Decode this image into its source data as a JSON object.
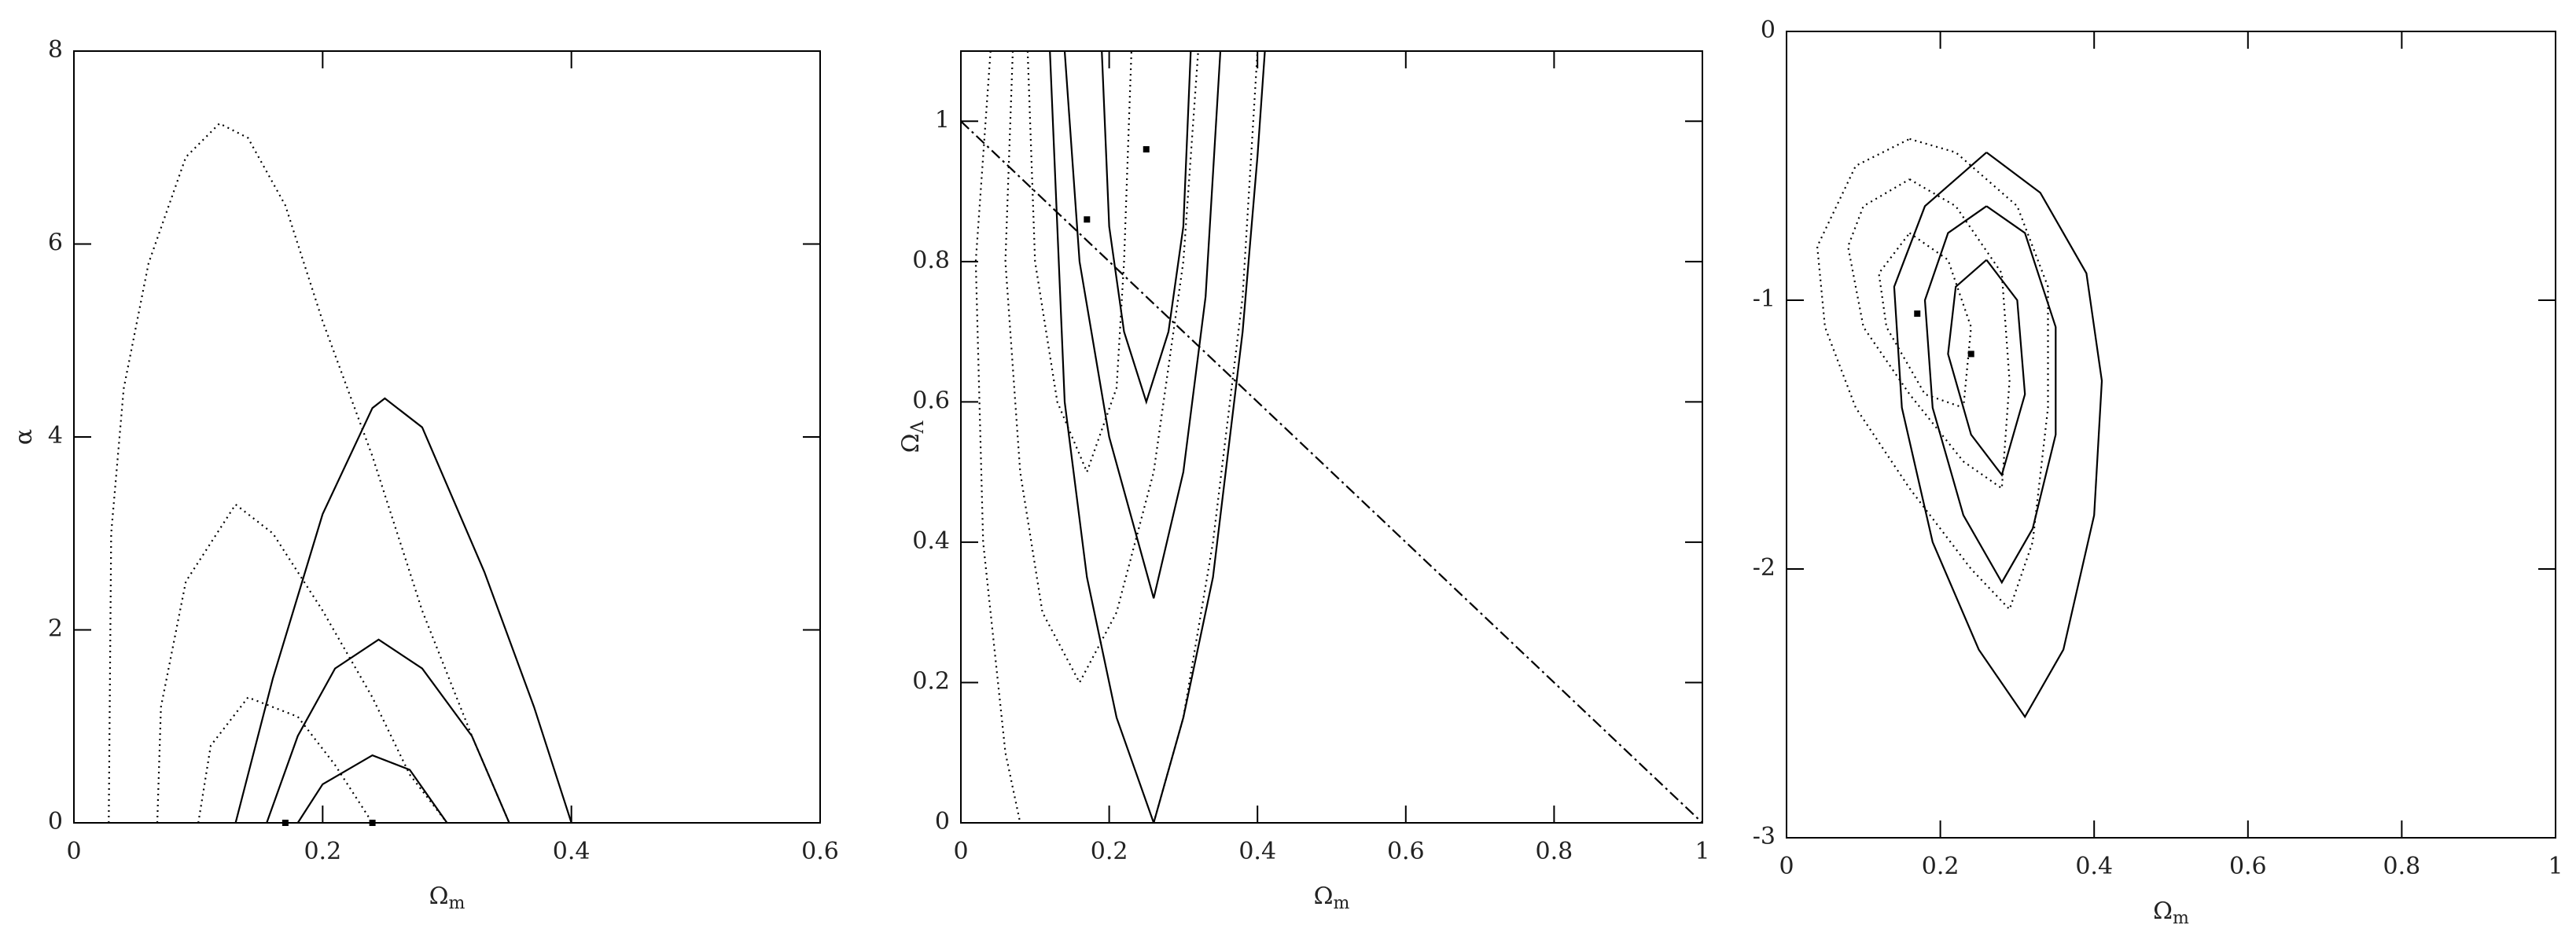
{
  "chart_data": [
    {
      "type": "line",
      "xlabel": "Ω",
      "xlabel_sub": "m",
      "ylabel": "α",
      "xlim": [
        0,
        0.6
      ],
      "ylim": [
        0,
        8
      ],
      "xticks": [
        0,
        0.2,
        0.4,
        0.6
      ],
      "yticks": [
        0,
        2,
        4,
        6,
        8
      ],
      "series": [
        {
          "color": "#000",
          "style": "dotted",
          "x": [
            0.028,
            0.03,
            0.04,
            0.06,
            0.09,
            0.117,
            0.14,
            0.17,
            0.2,
            0.24,
            0.28,
            0.32,
            0.35
          ],
          "values": [
            0,
            3,
            4.5,
            5.8,
            6.9,
            7.25,
            7.1,
            6.4,
            5.2,
            3.8,
            2.2,
            0.9,
            0
          ]
        },
        {
          "color": "#000",
          "style": "dotted",
          "x": [
            0.067,
            0.07,
            0.09,
            0.13,
            0.16,
            0.2,
            0.24,
            0.27,
            0.3
          ],
          "values": [
            0,
            1.2,
            2.5,
            3.3,
            3,
            2.2,
            1.3,
            0.5,
            0
          ]
        },
        {
          "color": "#000",
          "style": "dotted",
          "x": [
            0.1,
            0.11,
            0.14,
            0.18,
            0.21,
            0.24
          ],
          "values": [
            0,
            0.8,
            1.3,
            1.1,
            0.6,
            0
          ]
        },
        {
          "color": "#000",
          "style": "solid",
          "x": [
            0.13,
            0.16,
            0.2,
            0.24,
            0.25,
            0.28,
            0.33,
            0.37,
            0.4
          ],
          "values": [
            0,
            1.5,
            3.2,
            4.3,
            4.4,
            4.1,
            2.6,
            1.2,
            0
          ]
        },
        {
          "color": "#000",
          "style": "solid",
          "x": [
            0.155,
            0.18,
            0.21,
            0.245,
            0.28,
            0.32,
            0.35
          ],
          "values": [
            0,
            0.9,
            1.6,
            1.9,
            1.6,
            0.9,
            0
          ]
        },
        {
          "color": "#000",
          "style": "solid",
          "x": [
            0.18,
            0.2,
            0.24,
            0.27,
            0.3
          ],
          "values": [
            0,
            0.4,
            0.7,
            0.55,
            0
          ]
        }
      ],
      "points": {
        "color": "#000",
        "x": [
          0.17,
          0.24
        ],
        "values": [
          0,
          0
        ]
      }
    },
    {
      "type": "line",
      "xlabel": "Ω",
      "xlabel_sub": "m",
      "ylabel": "Ω",
      "ylabel_sub": "Λ",
      "xlim": [
        0,
        1
      ],
      "ylim": [
        0,
        1.1
      ],
      "xticks": [
        0,
        0.2,
        0.4,
        0.6,
        0.8,
        1
      ],
      "yticks": [
        0,
        0.2,
        0.4,
        0.6,
        0.8,
        1
      ],
      "series": [
        {
          "color": "#000",
          "style": "solid",
          "x": [
            0.12,
            0.14,
            0.17,
            0.21,
            0.26,
            0.3,
            0.34,
            0.38,
            0.4,
            0.41
          ],
          "values": [
            1.1,
            0.6,
            0.35,
            0.15,
            0,
            0.15,
            0.35,
            0.7,
            0.95,
            1.1
          ]
        },
        {
          "color": "#000",
          "style": "solid",
          "x": [
            0.14,
            0.16,
            0.2,
            0.26,
            0.3,
            0.33,
            0.35
          ],
          "values": [
            1.1,
            0.8,
            0.55,
            0.32,
            0.5,
            0.75,
            1.1
          ]
        },
        {
          "color": "#000",
          "style": "solid",
          "x": [
            0.19,
            0.2,
            0.22,
            0.25,
            0.28,
            0.3,
            0.31
          ],
          "values": [
            1.1,
            0.85,
            0.7,
            0.6,
            0.7,
            0.85,
            1.1
          ]
        },
        {
          "color": "#000",
          "style": "dotted",
          "x": [
            0.04,
            0.02,
            0.03,
            0.06,
            0.08,
            null,
            0.26,
            0.3,
            0.34,
            0.38,
            0.4
          ],
          "values": [
            1.1,
            0.8,
            0.4,
            0.1,
            0,
            null,
            0,
            0.15,
            0.4,
            0.75,
            1.1
          ]
        },
        {
          "color": "#000",
          "style": "dotted",
          "x": [
            0.07,
            0.06,
            0.08,
            0.11,
            0.16,
            0.21,
            0.26,
            0.3,
            0.32
          ],
          "values": [
            1.1,
            0.8,
            0.5,
            0.3,
            0.2,
            0.3,
            0.5,
            0.8,
            1.1
          ]
        },
        {
          "color": "#000",
          "style": "dotted",
          "x": [
            0.09,
            0.1,
            0.13,
            0.17,
            0.21,
            0.22,
            0.23
          ],
          "values": [
            1.1,
            0.8,
            0.6,
            0.5,
            0.62,
            0.8,
            1.1
          ]
        },
        {
          "color": "#000",
          "style": "dashdot",
          "x": [
            0,
            1
          ],
          "values": [
            1,
            0
          ]
        }
      ],
      "points": {
        "color": "#000",
        "x": [
          0.25,
          0.17
        ],
        "values": [
          0.96,
          0.86
        ]
      }
    },
    {
      "type": "line",
      "xlabel": "Ω",
      "xlabel_sub": "m",
      "xlim": [
        0,
        1
      ],
      "ylim": [
        -3,
        0
      ],
      "xticks": [
        0,
        0.2,
        0.4,
        0.6,
        0.8,
        1
      ],
      "yticks": [
        -3,
        -2,
        -1,
        0
      ],
      "series": [
        {
          "color": "#000",
          "style": "solid",
          "x": [
            0.26,
            0.33,
            0.39,
            0.41,
            0.4,
            0.36,
            0.31,
            0.25,
            0.19,
            0.15,
            0.14,
            0.18,
            0.26
          ],
          "values": [
            -0.45,
            -0.6,
            -0.9,
            -1.3,
            -1.8,
            -2.3,
            -2.55,
            -2.3,
            -1.9,
            -1.4,
            -0.95,
            -0.65,
            -0.45
          ]
        },
        {
          "color": "#000",
          "style": "solid",
          "x": [
            0.26,
            0.31,
            0.35,
            0.35,
            0.32,
            0.28,
            0.23,
            0.19,
            0.18,
            0.21,
            0.26
          ],
          "values": [
            -0.65,
            -0.75,
            -1.1,
            -1.5,
            -1.85,
            -2.05,
            -1.8,
            -1.4,
            -1,
            -0.75,
            -0.65
          ]
        },
        {
          "color": "#000",
          "style": "solid",
          "x": [
            0.26,
            0.3,
            0.31,
            0.28,
            0.24,
            0.21,
            0.22,
            0.26
          ],
          "values": [
            -0.85,
            -1,
            -1.35,
            -1.65,
            -1.5,
            -1.2,
            -0.95,
            -0.85
          ]
        },
        {
          "color": "#000",
          "style": "dotted",
          "x": [
            0.16,
            0.22,
            0.3,
            0.34,
            0.34,
            0.32,
            0.29,
            0.24,
            0.16,
            0.09,
            0.05,
            0.04,
            0.09,
            0.16
          ],
          "values": [
            -0.4,
            -0.45,
            -0.65,
            -0.95,
            -1.4,
            -1.9,
            -2.15,
            -2,
            -1.7,
            -1.4,
            -1.1,
            -0.8,
            -0.5,
            -0.4
          ]
        },
        {
          "color": "#000",
          "style": "dotted",
          "x": [
            0.16,
            0.22,
            0.28,
            0.29,
            0.28,
            0.23,
            0.16,
            0.1,
            0.08,
            0.1,
            0.16
          ],
          "values": [
            -0.55,
            -0.65,
            -0.9,
            -1.3,
            -1.7,
            -1.6,
            -1.35,
            -1.1,
            -0.8,
            -0.65,
            -0.55
          ]
        },
        {
          "color": "#000",
          "style": "dotted",
          "x": [
            0.16,
            0.21,
            0.24,
            0.23,
            0.18,
            0.13,
            0.12,
            0.16
          ],
          "values": [
            -0.75,
            -0.85,
            -1.1,
            -1.4,
            -1.35,
            -1.1,
            -0.9,
            -0.75
          ]
        }
      ],
      "points": {
        "color": "#000",
        "x": [
          0.17,
          0.24
        ],
        "values": [
          -1.05,
          -1.2
        ]
      }
    }
  ]
}
